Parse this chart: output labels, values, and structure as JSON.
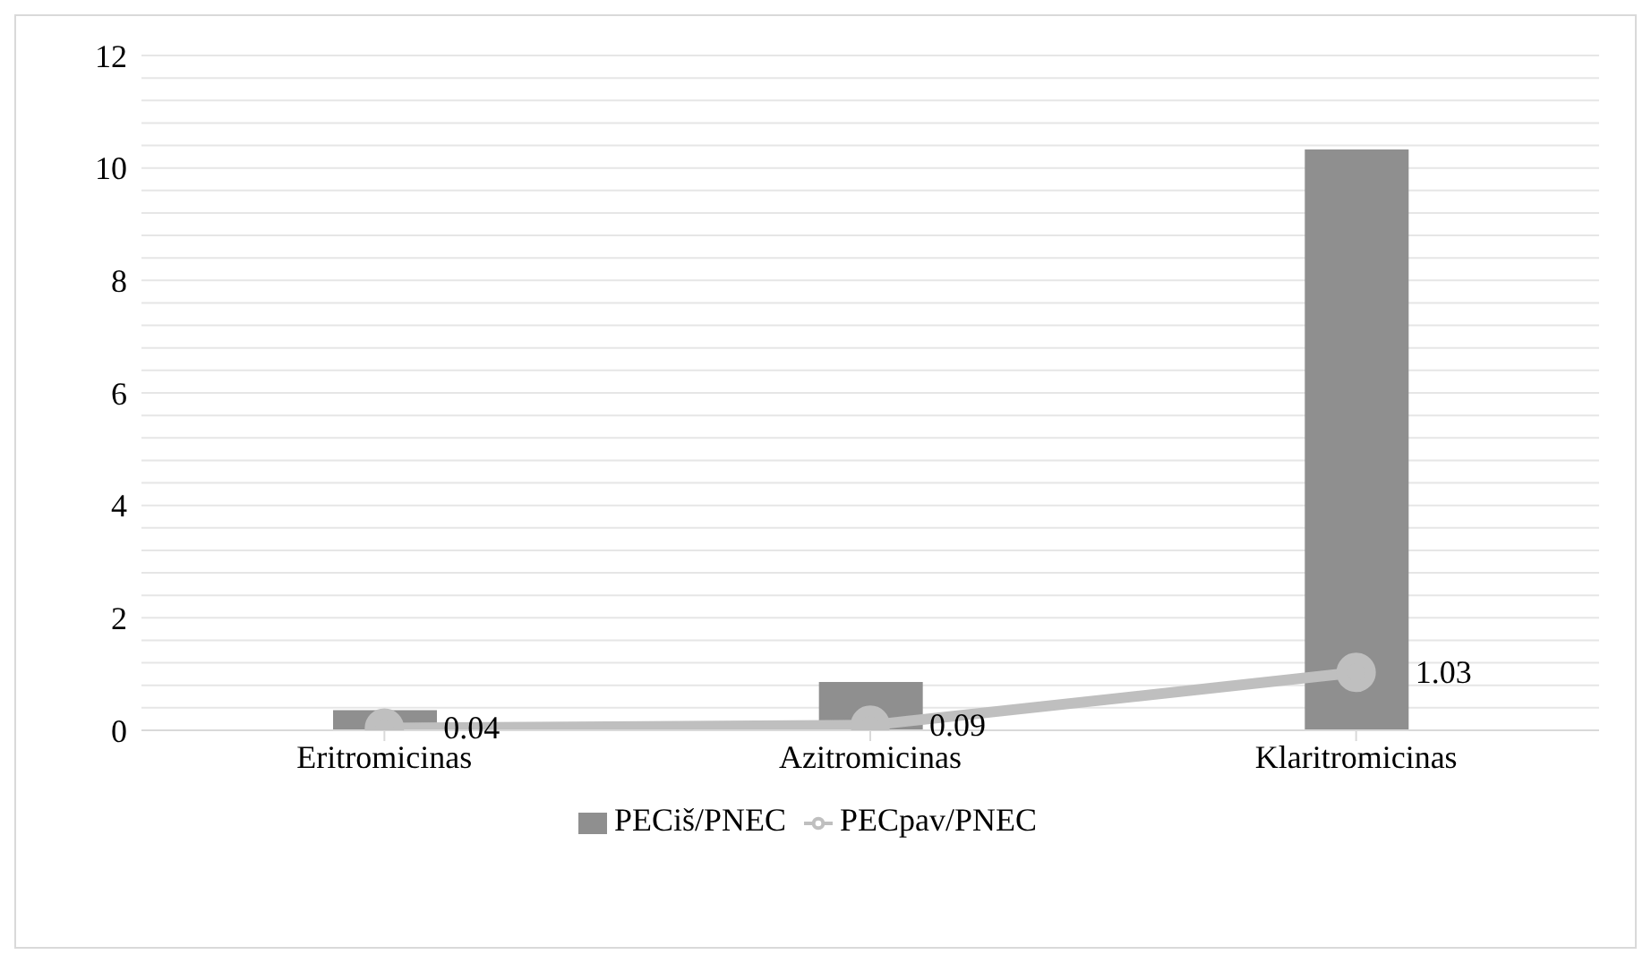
{
  "chart_data": {
    "type": "bar",
    "categories": [
      "Eritromicinas",
      "Azitromicinas",
      "Klaritromicinas"
    ],
    "series": [
      {
        "name": "PECiš/PNEC",
        "color": "#8f8f8f",
        "values": [
          0.36,
          0.86,
          10.33
        ]
      },
      {
        "name": "PECpav/PNEC",
        "type": "line",
        "color": "#bfbfbf",
        "values": [
          0.04,
          0.09,
          1.03
        ],
        "value_labels": [
          "0.04",
          "0.09",
          "1.03"
        ],
        "marker": "circle"
      }
    ],
    "ylim": [
      0,
      12
    ],
    "yticks": [
      0,
      {
        "value": 0.4,
        "label": null
      },
      {
        "value": 0.8,
        "label": null
      },
      {
        "value": 1.2,
        "label": null
      },
      {
        "value": 1.6,
        "label": null
      },
      2,
      {
        "value": 2.4,
        "label": null
      },
      {
        "value": 2.8,
        "label": null
      },
      {
        "value": 3.2,
        "label": null
      },
      {
        "value": 3.6,
        "label": null
      },
      4,
      {
        "value": 4.4,
        "label": null
      },
      {
        "value": 4.8,
        "label": null
      },
      {
        "value": 5.2,
        "label": null
      },
      {
        "value": 5.6,
        "label": null
      },
      6,
      {
        "value": 6.4,
        "label": null
      },
      {
        "value": 6.8,
        "label": null
      },
      {
        "value": 7.2,
        "label": null
      },
      {
        "value": 7.6,
        "label": null
      },
      8,
      {
        "value": 8.4,
        "label": null
      },
      {
        "value": 8.8,
        "label": null
      },
      {
        "value": 9.2,
        "label": null
      },
      {
        "value": 9.6,
        "label": null
      },
      10,
      {
        "value": 10.4,
        "label": null
      },
      {
        "value": 10.8,
        "label": null
      },
      {
        "value": 11.2,
        "label": null
      },
      {
        "value": 11.6,
        "label": null
      },
      12
    ],
    "grid": "y",
    "legend": "bottom"
  }
}
